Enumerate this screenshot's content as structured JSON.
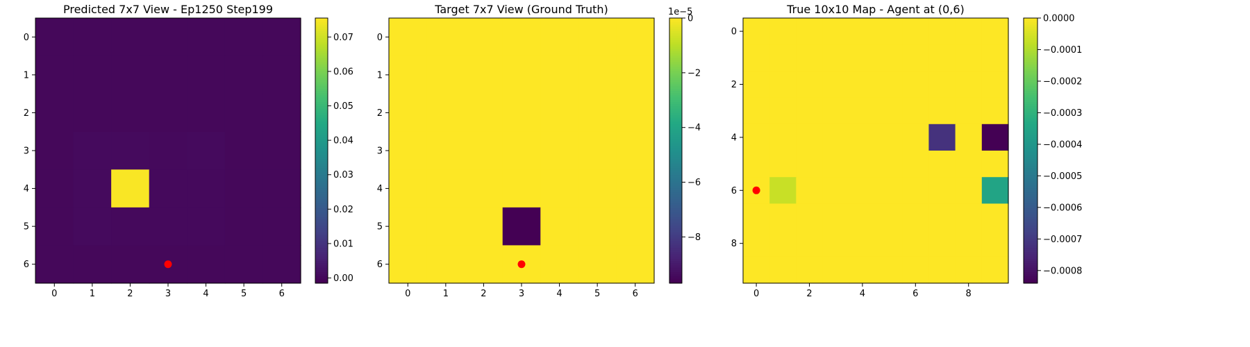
{
  "chart_data": [
    {
      "type": "heatmap",
      "title": "Predicted 7x7 View - Ep1250 Step199",
      "x_ticks": [
        "0",
        "1",
        "2",
        "3",
        "4",
        "5",
        "6"
      ],
      "y_ticks": [
        "0",
        "1",
        "2",
        "3",
        "4",
        "5",
        "6"
      ],
      "xlim": [
        -0.5,
        6.5
      ],
      "ylim": [
        6.5,
        -0.5
      ],
      "values": [
        [
          0.0,
          0.0,
          0.0,
          0.0,
          0.0,
          0.0,
          0.0
        ],
        [
          0.0,
          0.0,
          0.0,
          0.0,
          0.0,
          0.0,
          0.0
        ],
        [
          0.0,
          0.0,
          0.0,
          0.0,
          0.0,
          0.0,
          0.0
        ],
        [
          0.0,
          0.0005,
          0.0005,
          0.0003,
          0.0005,
          0.0,
          0.0
        ],
        [
          0.0,
          0.0005,
          0.075,
          0.0003,
          0.0003,
          0.0,
          0.0
        ],
        [
          0.0,
          0.0005,
          0.0003,
          0.0003,
          0.0003,
          0.0,
          0.0
        ],
        [
          0.0,
          0.0,
          0.0,
          0.0,
          0.0,
          0.0,
          0.0
        ]
      ],
      "vmin": -0.0015,
      "vmax": 0.0755,
      "colorbar": {
        "ticks": [
          0.0,
          0.01,
          0.02,
          0.03,
          0.04,
          0.05,
          0.06,
          0.07
        ],
        "labels": [
          "0.00",
          "0.01",
          "0.02",
          "0.03",
          "0.04",
          "0.05",
          "0.06",
          "0.07"
        ],
        "offset_label": ""
      },
      "agent": {
        "x": 3,
        "y": 6,
        "color": "#ff0000"
      }
    },
    {
      "type": "heatmap",
      "title": "Target 7x7 View (Ground Truth)",
      "x_ticks": [
        "0",
        "1",
        "2",
        "3",
        "4",
        "5",
        "6"
      ],
      "y_ticks": [
        "0",
        "1",
        "2",
        "3",
        "4",
        "5",
        "6"
      ],
      "xlim": [
        -0.5,
        6.5
      ],
      "ylim": [
        6.5,
        -0.5
      ],
      "values": [
        [
          0,
          0,
          0,
          0,
          0,
          0,
          0
        ],
        [
          0,
          0,
          0,
          0,
          0,
          0,
          0
        ],
        [
          0,
          0,
          0,
          0,
          0,
          0,
          0
        ],
        [
          0,
          0,
          0,
          0,
          0,
          0,
          0
        ],
        [
          0,
          0,
          0,
          0,
          0,
          0,
          0
        ],
        [
          0,
          0,
          0,
          -9.69e-05,
          0,
          0,
          0
        ],
        [
          0,
          0,
          0,
          0,
          0,
          0,
          0
        ]
      ],
      "vmin": -9.69e-05,
      "vmax": 0.0,
      "colorbar": {
        "ticks": [
          0,
          -2e-05,
          -4e-05,
          -6e-05,
          -8e-05
        ],
        "labels": [
          "0",
          "−2",
          "−4",
          "−6",
          "−8"
        ],
        "offset_label": "1e−5"
      },
      "agent": {
        "x": 3,
        "y": 6,
        "color": "#ff0000"
      }
    },
    {
      "type": "heatmap",
      "title": "True 10x10 Map - Agent at (0,6)",
      "x_ticks": [
        "0",
        "2",
        "4",
        "6",
        "8"
      ],
      "x_tick_values": [
        0,
        2,
        4,
        6,
        8
      ],
      "y_ticks": [
        "0",
        "2",
        "4",
        "6",
        "8"
      ],
      "y_tick_values": [
        0,
        2,
        4,
        6,
        8
      ],
      "xlim": [
        -0.5,
        9.5
      ],
      "ylim": [
        9.5,
        -0.5
      ],
      "values": [
        [
          0,
          0,
          0,
          0,
          0,
          0,
          0,
          0,
          0,
          0
        ],
        [
          0,
          0,
          0,
          0,
          0,
          0,
          0,
          0,
          0,
          0
        ],
        [
          0,
          0,
          0,
          0,
          0,
          0,
          0,
          0,
          0,
          0
        ],
        [
          0,
          0,
          0,
          0,
          0,
          0,
          0,
          0,
          0,
          0
        ],
        [
          0,
          0,
          0,
          0,
          0,
          0,
          0,
          -0.00072,
          0,
          -0.00084
        ],
        [
          0,
          0,
          0,
          0,
          0,
          0,
          0,
          0,
          0,
          0
        ],
        [
          0,
          -7e-05,
          0,
          0,
          0,
          0,
          0,
          0,
          0,
          -0.00035
        ],
        [
          0,
          0,
          0,
          0,
          0,
          0,
          0,
          0,
          0,
          0
        ],
        [
          0,
          0,
          0,
          0,
          0,
          0,
          0,
          0,
          0,
          0
        ],
        [
          0,
          0,
          0,
          0,
          0,
          0,
          0,
          0,
          0,
          0
        ]
      ],
      "vmin": -0.00084,
      "vmax": 0.0,
      "colorbar": {
        "ticks": [
          0,
          -0.0001,
          -0.0002,
          -0.0003,
          -0.0004,
          -0.0005,
          -0.0006,
          -0.0007,
          -0.0008
        ],
        "labels": [
          "0.0000",
          "−0.0001",
          "−0.0002",
          "−0.0003",
          "−0.0004",
          "−0.0005",
          "−0.0006",
          "−0.0007",
          "−0.0008"
        ],
        "offset_label": ""
      },
      "agent": {
        "x": 0,
        "y": 6,
        "color": "#ff0000"
      }
    }
  ]
}
